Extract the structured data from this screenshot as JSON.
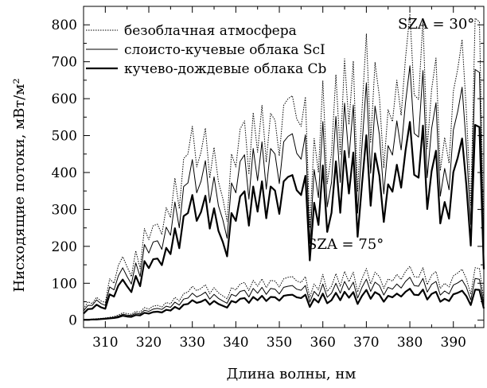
{
  "chart_data": {
    "type": "line",
    "title": "",
    "xlabel": "Длина волны, нм",
    "ylabel": "Нисходящие потоки, мВт/м²",
    "xlim": [
      305,
      397
    ],
    "ylim": [
      -20,
      850
    ],
    "x_ticks": [
      310,
      320,
      330,
      340,
      350,
      360,
      370,
      380,
      390
    ],
    "y_ticks": [
      0,
      100,
      200,
      300,
      400,
      500,
      600,
      700,
      800
    ],
    "grid": false,
    "legend_position": "top-left",
    "annotations": [
      {
        "text": "SZA = 30°",
        "x": 391,
        "y": 808
      },
      {
        "text": "SZA = 75°",
        "x": 357,
        "y": 150
      }
    ],
    "x": [
      305,
      306,
      307,
      308,
      309,
      310,
      311,
      312,
      313,
      314,
      315,
      316,
      317,
      318,
      319,
      320,
      321,
      322,
      323,
      324,
      325,
      326,
      327,
      328,
      329,
      330,
      331,
      332,
      333,
      334,
      335,
      336,
      337,
      338,
      339,
      340,
      341,
      342,
      343,
      344,
      345,
      346,
      347,
      348,
      349,
      350,
      351,
      352,
      353,
      354,
      355,
      356,
      357,
      358,
      359,
      360,
      361,
      362,
      363,
      364,
      365,
      366,
      367,
      368,
      369,
      370,
      371,
      372,
      373,
      374,
      375,
      376,
      377,
      378,
      379,
      380,
      381,
      382,
      383,
      384,
      385,
      386,
      387,
      388,
      389,
      390,
      391,
      392,
      393,
      394,
      395,
      396,
      397
    ],
    "series": [
      {
        "name": "безоблачная атмосфера",
        "group": "SZA = 30°",
        "style": "dotted",
        "values": [
          30,
          50,
          45,
          62,
          52,
          48,
          112,
          100,
          148,
          172,
          145,
          118,
          188,
          140,
          248,
          218,
          256,
          260,
          232,
          305,
          278,
          385,
          302,
          438,
          450,
          525,
          415,
          455,
          520,
          385,
          468,
          375,
          330,
          268,
          450,
          415,
          518,
          540,
          395,
          562,
          455,
          582,
          428,
          560,
          542,
          445,
          582,
          600,
          608,
          545,
          525,
          605,
          250,
          492,
          400,
          648,
          370,
          450,
          665,
          450,
          708,
          530,
          702,
          350,
          568,
          775,
          480,
          698,
          605,
          412,
          570,
          538,
          650,
          555,
          710,
          830,
          610,
          598,
          815,
          465,
          625,
          710,
          405,
          495,
          425,
          620,
          680,
          760,
          565,
          312,
          818,
          808,
          213
        ],
        "name_ref": "legend.items.0.label"
      },
      {
        "name": "слоисто-кучевые облака ScI",
        "group": "SZA = 30°",
        "style": "thin",
        "values": [
          25,
          40,
          40,
          55,
          45,
          40,
          90,
          82,
          120,
          142,
          118,
          98,
          155,
          118,
          205,
          182,
          212,
          215,
          192,
          252,
          230,
          320,
          250,
          362,
          372,
          435,
          345,
          376,
          432,
          318,
          388,
          310,
          272,
          222,
          372,
          345,
          430,
          448,
          328,
          465,
          378,
          483,
          355,
          465,
          450,
          370,
          483,
          498,
          505,
          452,
          436,
          502,
          208,
          408,
          332,
          538,
          307,
          373,
          552,
          373,
          588,
          440,
          583,
          290,
          472,
          643,
          398,
          580,
          502,
          342,
          473,
          447,
          540,
          461,
          589,
          689,
          506,
          496,
          676,
          386,
          519,
          589,
          336,
          411,
          353,
          515,
          565,
          631,
          469,
          259,
          679,
          671,
          177
        ]
      },
      {
        "name": "кучево-дождевые облака Cb",
        "group": "SZA = 30°",
        "style": "thick",
        "values": [
          18,
          30,
          31,
          42,
          35,
          31,
          70,
          64,
          94,
          110,
          92,
          76,
          120,
          92,
          160,
          141,
          165,
          167,
          149,
          196,
          179,
          249,
          195,
          282,
          290,
          339,
          269,
          293,
          337,
          248,
          303,
          242,
          212,
          173,
          290,
          269,
          335,
          349,
          256,
          362,
          294,
          376,
          276,
          362,
          351,
          288,
          376,
          388,
          393,
          352,
          339,
          391,
          162,
          318,
          258,
          419,
          239,
          291,
          430,
          291,
          458,
          343,
          454,
          226,
          368,
          501,
          310,
          452,
          391,
          266,
          368,
          348,
          421,
          359,
          459,
          537,
          394,
          386,
          527,
          301,
          404,
          459,
          262,
          320,
          275,
          401,
          440,
          492,
          365,
          202,
          529,
          523,
          138
        ]
      },
      {
        "name": "безоблачная атмосфера",
        "group": "SZA = 75°",
        "style": "dotted",
        "values": [
          2,
          2,
          3,
          4,
          5,
          6,
          8,
          10,
          14,
          20,
          18,
          16,
          24,
          22,
          34,
          30,
          38,
          40,
          36,
          48,
          44,
          62,
          52,
          72,
          76,
          92,
          80,
          86,
          96,
          72,
          88,
          74,
          66,
          58,
          88,
          82,
          98,
          102,
          80,
          108,
          92,
          112,
          88,
          108,
          106,
          90,
          112,
          116,
          118,
          106,
          102,
          118,
          62,
          98,
          82,
          124,
          78,
          92,
          126,
          92,
          132,
          104,
          130,
          76,
          112,
          140,
          98,
          130,
          118,
          86,
          112,
          106,
          124,
          110,
          132,
          146,
          118,
          116,
          142,
          96,
          122,
          132,
          86,
          100,
          90,
          120,
          128,
          138,
          112,
          70,
          142,
          140,
          56
        ]
      },
      {
        "name": "слоисто-кучевые облака ScI",
        "group": "SZA = 75°",
        "style": "thin",
        "values": [
          1,
          2,
          2,
          3,
          4,
          5,
          6,
          8,
          11,
          16,
          14,
          13,
          19,
          17,
          27,
          24,
          30,
          32,
          29,
          38,
          35,
          49,
          41,
          57,
          60,
          73,
          63,
          68,
          76,
          57,
          70,
          59,
          52,
          46,
          70,
          65,
          78,
          81,
          63,
          86,
          73,
          89,
          70,
          86,
          84,
          71,
          89,
          92,
          94,
          84,
          81,
          94,
          49,
          78,
          65,
          98,
          62,
          73,
          100,
          73,
          105,
          82,
          103,
          60,
          89,
          111,
          78,
          103,
          94,
          68,
          89,
          84,
          98,
          87,
          105,
          116,
          94,
          92,
          113,
          76,
          97,
          105,
          68,
          79,
          71,
          95,
          101,
          109,
          89,
          55,
          113,
          111,
          44
        ]
      },
      {
        "name": "кучево-дождевые облака Cb",
        "group": "SZA = 75°",
        "style": "thick",
        "values": [
          1,
          1,
          2,
          2,
          3,
          4,
          5,
          6,
          8,
          12,
          10,
          9,
          14,
          13,
          20,
          18,
          22,
          23,
          21,
          28,
          26,
          36,
          30,
          42,
          44,
          54,
          47,
          50,
          56,
          42,
          52,
          44,
          39,
          34,
          52,
          48,
          58,
          60,
          47,
          63,
          54,
          66,
          52,
          63,
          62,
          53,
          66,
          68,
          69,
          62,
          60,
          69,
          36,
          58,
          48,
          72,
          46,
          54,
          74,
          54,
          77,
          61,
          76,
          44,
          66,
          82,
          58,
          76,
          69,
          50,
          66,
          62,
          72,
          64,
          77,
          85,
          69,
          68,
          83,
          56,
          71,
          77,
          50,
          58,
          52,
          70,
          74,
          80,
          65,
          41,
          83,
          82,
          32
        ]
      }
    ]
  },
  "legend": {
    "items": [
      {
        "label": "безоблачная атмосфера"
      },
      {
        "label": "слоисто-кучевые облака ScI"
      },
      {
        "label": "кучево-дождевые облака Cb"
      }
    ]
  },
  "styles": {
    "line_color": "#000000"
  }
}
